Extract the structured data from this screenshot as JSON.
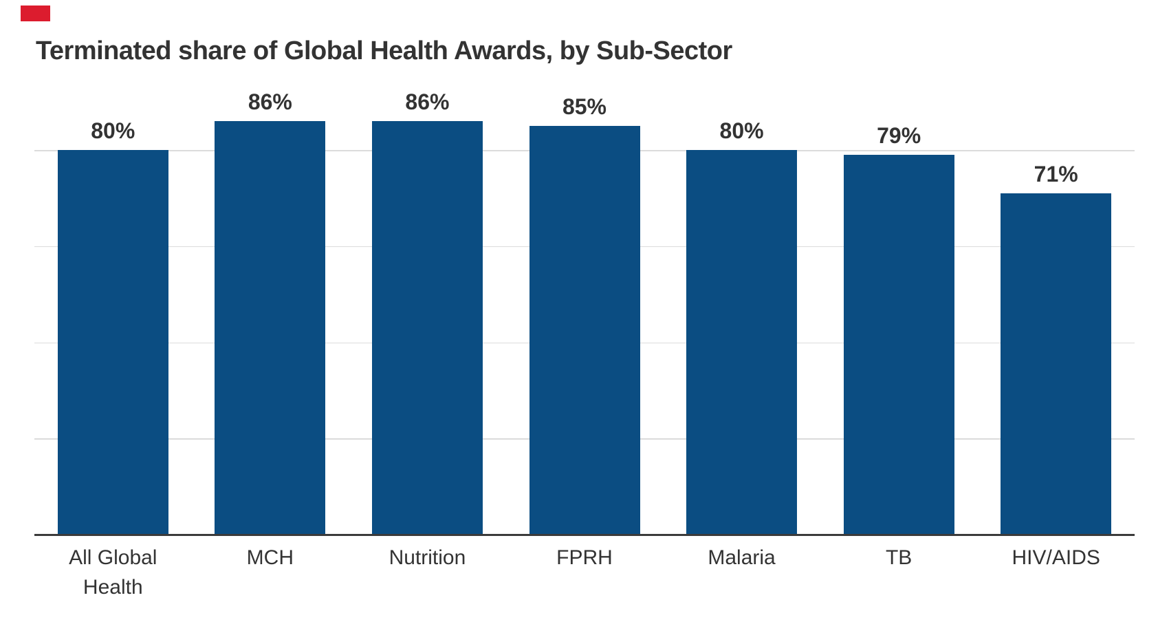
{
  "brand_mark": {
    "color": "#DC1C2E"
  },
  "chart_data": {
    "type": "bar",
    "title": "Terminated share of Global Health Awards, by Sub-Sector",
    "categories": [
      "All Global Health",
      "MCH",
      "Nutrition",
      "FPRH",
      "Malaria",
      "TB",
      "HIV/AIDS"
    ],
    "values": [
      80,
      86,
      86,
      85,
      80,
      79,
      71
    ],
    "value_labels": [
      "80%",
      "86%",
      "86%",
      "85%",
      "80%",
      "79%",
      "71%"
    ],
    "xlabel": "",
    "ylabel": "",
    "ylim": [
      0,
      100
    ],
    "gridline_values": [
      20,
      40,
      60,
      80
    ],
    "grid": "horizontal",
    "y_tick_labels": "none",
    "legend": "none",
    "bar_color": "#0B4D82",
    "gridline_color": "#DBDBDB",
    "axis_color": "#3B3B3B",
    "text_color": "#333333"
  }
}
